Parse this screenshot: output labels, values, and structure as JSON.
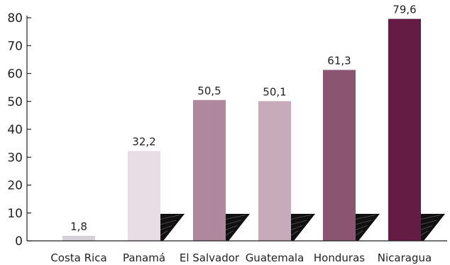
{
  "chart_data": {
    "type": "bar",
    "categories": [
      "Costa Rica",
      "Panamá",
      "El Salvador",
      "Guatemala",
      "Honduras",
      "Nicaragua"
    ],
    "values": [
      1.8,
      32.2,
      50.5,
      50.1,
      61.3,
      79.6
    ],
    "value_labels": [
      "1,8",
      "32,2",
      "50,5",
      "50,1",
      "61,3",
      "79,6"
    ],
    "ylim": [
      0,
      80
    ],
    "yticks": [
      0,
      10,
      20,
      30,
      40,
      50,
      60,
      70,
      80
    ],
    "grid": false,
    "legend": "none",
    "colors": [
      "#d6d0d9",
      "#e8dde4",
      "#b0889e",
      "#c8abbb",
      "#8a5570",
      "#651c44"
    ],
    "title": "",
    "xlabel": "",
    "ylabel": ""
  }
}
